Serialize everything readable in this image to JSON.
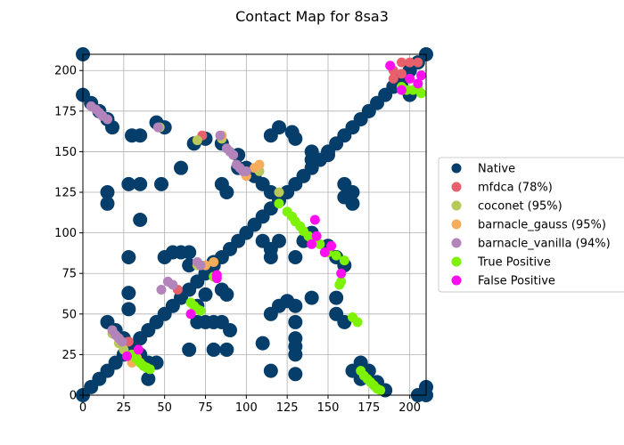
{
  "chart_data": {
    "type": "scatter",
    "title": "Contact Map for 8sa3",
    "xlabel": "",
    "ylabel": "",
    "xlim": [
      0,
      210
    ],
    "ylim": [
      0,
      210
    ],
    "xticks": [
      0,
      25,
      50,
      75,
      100,
      125,
      150,
      175,
      200
    ],
    "yticks": [
      0,
      25,
      50,
      75,
      100,
      125,
      150,
      175,
      200
    ],
    "grid": true,
    "legend_position": "right",
    "series": [
      {
        "name": "Native",
        "color": "#053d6b",
        "points": [
          [
            0,
            0
          ],
          [
            5,
            5
          ],
          [
            10,
            10
          ],
          [
            15,
            15
          ],
          [
            20,
            20
          ],
          [
            25,
            25
          ],
          [
            30,
            30
          ],
          [
            35,
            35
          ],
          [
            40,
            40
          ],
          [
            45,
            45
          ],
          [
            50,
            50
          ],
          [
            55,
            55
          ],
          [
            60,
            60
          ],
          [
            65,
            65
          ],
          [
            70,
            70
          ],
          [
            75,
            75
          ],
          [
            80,
            80
          ],
          [
            85,
            85
          ],
          [
            90,
            90
          ],
          [
            95,
            95
          ],
          [
            100,
            100
          ],
          [
            105,
            105
          ],
          [
            110,
            110
          ],
          [
            115,
            115
          ],
          [
            120,
            120
          ],
          [
            125,
            125
          ],
          [
            130,
            130
          ],
          [
            135,
            135
          ],
          [
            140,
            140
          ],
          [
            145,
            145
          ],
          [
            150,
            150
          ],
          [
            155,
            155
          ],
          [
            160,
            160
          ],
          [
            165,
            165
          ],
          [
            170,
            170
          ],
          [
            175,
            175
          ],
          [
            180,
            180
          ],
          [
            185,
            185
          ],
          [
            190,
            190
          ],
          [
            195,
            195
          ],
          [
            200,
            200
          ],
          [
            205,
            205
          ],
          [
            210,
            210
          ],
          [
            0,
            185
          ],
          [
            5,
            180
          ],
          [
            10,
            175
          ],
          [
            15,
            170
          ],
          [
            18,
            165
          ],
          [
            0,
            210
          ],
          [
            210,
            0
          ],
          [
            45,
            168
          ],
          [
            50,
            165
          ],
          [
            68,
            155
          ],
          [
            75,
            158
          ],
          [
            85,
            155
          ],
          [
            95,
            148
          ],
          [
            100,
            140
          ],
          [
            105,
            135
          ],
          [
            110,
            130
          ],
          [
            115,
            125
          ],
          [
            120,
            120
          ],
          [
            15,
            125
          ],
          [
            15,
            118
          ],
          [
            28,
            130
          ],
          [
            35,
            130
          ],
          [
            30,
            160
          ],
          [
            35,
            160
          ],
          [
            48,
            130
          ],
          [
            60,
            140
          ],
          [
            35,
            108
          ],
          [
            28,
            85
          ],
          [
            28,
            63
          ],
          [
            28,
            53
          ],
          [
            50,
            85
          ],
          [
            55,
            88
          ],
          [
            60,
            88
          ],
          [
            65,
            88
          ],
          [
            65,
            80
          ],
          [
            80,
            82
          ],
          [
            75,
            62
          ],
          [
            70,
            55
          ],
          [
            85,
            65
          ],
          [
            88,
            62
          ],
          [
            70,
            45
          ],
          [
            75,
            45
          ],
          [
            80,
            45
          ],
          [
            85,
            45
          ],
          [
            90,
            40
          ],
          [
            80,
            28
          ],
          [
            65,
            28
          ],
          [
            88,
            28
          ],
          [
            110,
            32
          ],
          [
            115,
            50
          ],
          [
            120,
            55
          ],
          [
            125,
            58
          ],
          [
            130,
            55
          ],
          [
            130,
            45
          ],
          [
            130,
            35
          ],
          [
            130,
            30
          ],
          [
            130,
            25
          ],
          [
            115,
            15
          ],
          [
            130,
            13
          ],
          [
            85,
            130
          ],
          [
            88,
            125
          ],
          [
            115,
            160
          ],
          [
            120,
            165
          ],
          [
            128,
            162
          ],
          [
            130,
            158
          ],
          [
            95,
            140
          ],
          [
            160,
            130
          ],
          [
            160,
            122
          ],
          [
            165,
            118
          ],
          [
            165,
            125
          ],
          [
            155,
            60
          ],
          [
            155,
            50
          ],
          [
            160,
            45
          ],
          [
            170,
            20
          ],
          [
            175,
            15
          ],
          [
            180,
            8
          ],
          [
            185,
            3
          ],
          [
            165,
            15
          ],
          [
            170,
            10
          ],
          [
            20,
            40
          ],
          [
            25,
            35
          ],
          [
            30,
            30
          ],
          [
            35,
            25
          ],
          [
            40,
            20
          ],
          [
            15,
            45
          ],
          [
            45,
            20
          ],
          [
            40,
            10
          ],
          [
            115,
            85
          ],
          [
            130,
            85
          ],
          [
            205,
            0
          ],
          [
            210,
            5
          ],
          [
            195,
            190
          ],
          [
            200,
            185
          ],
          [
            140,
            145
          ],
          [
            145,
            145
          ],
          [
            150,
            148
          ],
          [
            140,
            150
          ],
          [
            115,
            90
          ],
          [
            110,
            95
          ],
          [
            120,
            95
          ],
          [
            135,
            95
          ],
          [
            140,
            100
          ],
          [
            150,
            92
          ],
          [
            155,
            85
          ],
          [
            160,
            80
          ],
          [
            140,
            60
          ]
        ]
      },
      {
        "name": "mfdca (78%)",
        "color": "#e8606b",
        "points": [
          [
            190,
            200
          ],
          [
            195,
            205
          ],
          [
            200,
            205
          ],
          [
            195,
            198
          ],
          [
            205,
            205
          ],
          [
            190,
            195
          ],
          [
            73,
            160
          ],
          [
            58,
            65
          ],
          [
            28,
            33
          ]
        ]
      },
      {
        "name": "coconet (95%)",
        "color": "#b8c85a",
        "points": [
          [
            18,
            38
          ],
          [
            22,
            32
          ],
          [
            25,
            28
          ],
          [
            30,
            25
          ],
          [
            120,
            125
          ],
          [
            70,
            80
          ],
          [
            85,
            158
          ],
          [
            47,
            165
          ],
          [
            70,
            157
          ],
          [
            108,
            138
          ],
          [
            33,
            22
          ]
        ]
      },
      {
        "name": "barnacle_gauss (95%)",
        "color": "#f5ad5c",
        "points": [
          [
            85,
            160
          ],
          [
            100,
            135
          ],
          [
            105,
            140
          ],
          [
            108,
            142
          ],
          [
            80,
            82
          ],
          [
            75,
            80
          ],
          [
            22,
            35
          ],
          [
            33,
            23
          ],
          [
            30,
            20
          ]
        ]
      },
      {
        "name": "barnacle_vanilla (94%)",
        "color": "#b284ba",
        "points": [
          [
            5,
            178
          ],
          [
            8,
            176
          ],
          [
            10,
            174
          ],
          [
            12,
            172
          ],
          [
            15,
            170
          ],
          [
            46,
            165
          ],
          [
            88,
            152
          ],
          [
            90,
            150
          ],
          [
            92,
            148
          ],
          [
            94,
            142
          ],
          [
            96,
            140
          ],
          [
            98,
            138
          ],
          [
            100,
            138
          ],
          [
            48,
            65
          ],
          [
            52,
            70
          ],
          [
            55,
            68
          ],
          [
            72,
            80
          ],
          [
            70,
            82
          ],
          [
            18,
            40
          ],
          [
            20,
            37
          ],
          [
            22,
            35
          ],
          [
            24,
            33
          ],
          [
            84,
            160
          ]
        ]
      },
      {
        "name": "True Positive",
        "color": "#7df202",
        "points": [
          [
            120,
            118
          ],
          [
            125,
            113
          ],
          [
            128,
            110
          ],
          [
            130,
            107
          ],
          [
            133,
            104
          ],
          [
            135,
            101
          ],
          [
            138,
            98
          ],
          [
            140,
            96
          ],
          [
            145,
            93
          ],
          [
            150,
            88
          ],
          [
            155,
            86
          ],
          [
            160,
            83
          ],
          [
            158,
            70
          ],
          [
            157,
            68
          ],
          [
            165,
            48
          ],
          [
            168,
            45
          ],
          [
            170,
            15
          ],
          [
            172,
            12
          ],
          [
            174,
            10
          ],
          [
            176,
            8
          ],
          [
            178,
            6
          ],
          [
            180,
            4
          ],
          [
            182,
            3
          ],
          [
            66,
            57
          ],
          [
            68,
            55
          ],
          [
            70,
            53
          ],
          [
            72,
            52
          ],
          [
            80,
            73
          ],
          [
            30,
            25
          ],
          [
            32,
            23
          ],
          [
            35,
            20
          ],
          [
            37,
            18
          ],
          [
            39,
            17
          ],
          [
            41,
            16
          ],
          [
            195,
            190
          ],
          [
            198,
            188
          ],
          [
            202,
            188
          ],
          [
            205,
            190
          ],
          [
            207,
            186
          ]
        ]
      },
      {
        "name": "False Positive",
        "color": "#ff0eef",
        "points": [
          [
            142,
            108
          ],
          [
            143,
            98
          ],
          [
            140,
            93
          ],
          [
            148,
            88
          ],
          [
            152,
            92
          ],
          [
            158,
            75
          ],
          [
            82,
            74
          ],
          [
            82,
            72
          ],
          [
            66,
            50
          ],
          [
            27,
            24
          ],
          [
            34,
            28
          ],
          [
            195,
            188
          ],
          [
            200,
            195
          ],
          [
            205,
            192
          ],
          [
            207,
            197
          ],
          [
            188,
            203
          ]
        ]
      }
    ]
  }
}
